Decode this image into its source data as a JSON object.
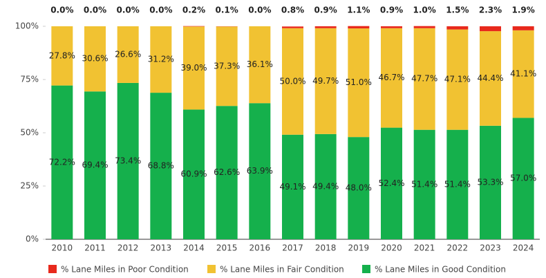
{
  "chart_data": {
    "type": "stacked_bar",
    "categories": [
      "2010",
      "2011",
      "2012",
      "2013",
      "2014",
      "2015",
      "2016",
      "2017",
      "2018",
      "2019",
      "2020",
      "2021",
      "2022",
      "2023",
      "2024"
    ],
    "series": [
      {
        "name": "% Lane Miles in Poor Condition",
        "color": "#e8291c",
        "values": [
          0.0,
          0.0,
          0.0,
          0.0,
          0.2,
          0.1,
          0.0,
          0.8,
          0.9,
          1.1,
          0.9,
          1.0,
          1.5,
          2.3,
          1.9
        ],
        "value_labels": [
          "0.0%",
          "0.0%",
          "0.0%",
          "0.0%",
          "0.2%",
          "0.1%",
          "0.0%",
          "0.8%",
          "0.9%",
          "1.1%",
          "0.9%",
          "1.0%",
          "1.5%",
          "2.3%",
          "1.9%"
        ]
      },
      {
        "name": "% Lane Miles in Fair Condition",
        "color": "#f1c232",
        "values": [
          27.8,
          30.6,
          26.6,
          31.2,
          39.0,
          37.3,
          36.1,
          50.0,
          49.7,
          51.0,
          46.7,
          47.7,
          47.1,
          44.4,
          41.1
        ],
        "value_labels": [
          "27.8%",
          "30.6%",
          "26.6%",
          "31.2%",
          "39.0%",
          "37.3%",
          "36.1%",
          "50.0%",
          "49.7%",
          "51.0%",
          "46.7%",
          "47.7%",
          "47.1%",
          "44.4%",
          "41.1%"
        ]
      },
      {
        "name": "% Lane Miles in Good Condition",
        "color": "#15b04c",
        "values": [
          72.2,
          69.4,
          73.4,
          68.8,
          60.9,
          62.6,
          63.9,
          49.1,
          49.4,
          48.0,
          52.4,
          51.4,
          51.4,
          53.3,
          57.0
        ],
        "value_labels": [
          "72.2%",
          "69.4%",
          "73.4%",
          "68.8%",
          "60.9%",
          "62.6%",
          "63.9%",
          "49.1%",
          "49.4%",
          "48.0%",
          "52.4%",
          "51.4%",
          "51.4%",
          "53.3%",
          "57.0%"
        ]
      }
    ],
    "ylim": [
      0,
      100
    ],
    "yticks": [
      {
        "value": 0,
        "label": "0%"
      },
      {
        "value": 25,
        "label": "25%"
      },
      {
        "value": 50,
        "label": "50%"
      },
      {
        "value": 75,
        "label": "75%"
      },
      {
        "value": 100,
        "label": "100%"
      }
    ],
    "grid": false,
    "legend": "bottom"
  }
}
